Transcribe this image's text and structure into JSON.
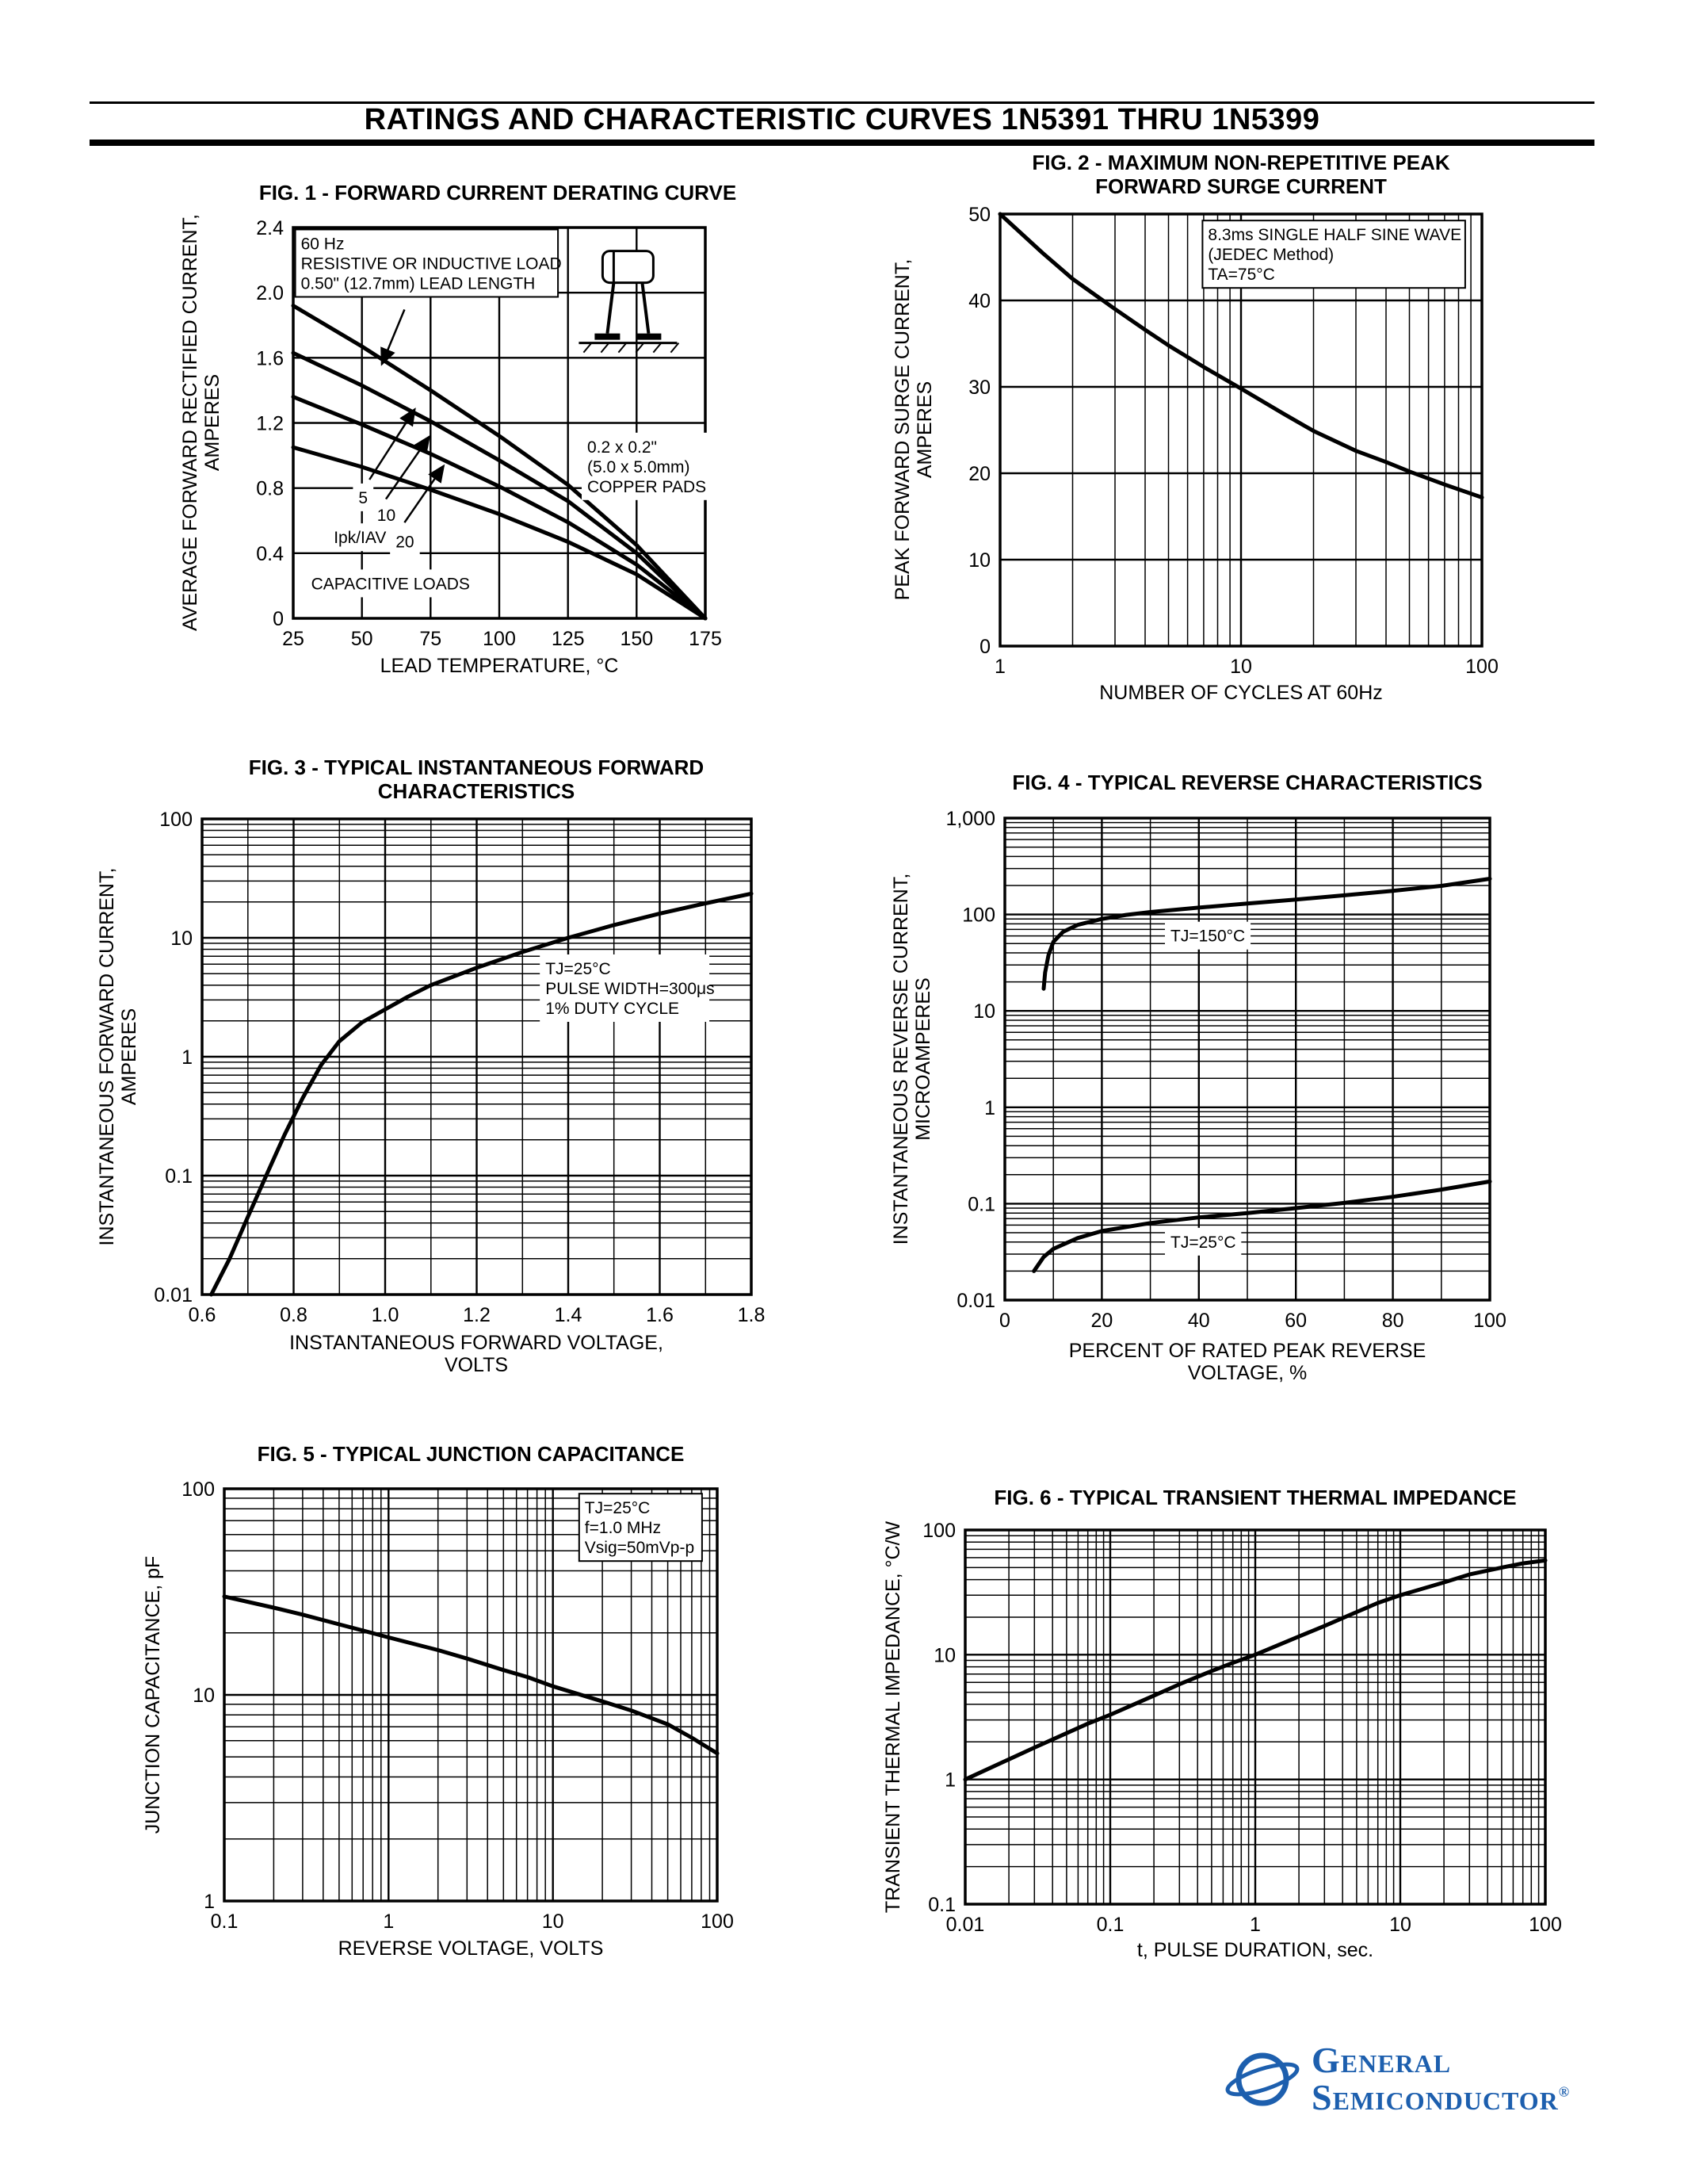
{
  "page": {
    "header_title": "RATINGS AND CHARACTERISTIC CURVES 1N5391 THRU 1N5399"
  },
  "logo": {
    "name_line1": "General",
    "name_line2": "Semiconductor",
    "registered_mark": "®",
    "brand_color": "#1d5fae"
  },
  "chart_data": [
    {
      "id": "fig1",
      "type": "line",
      "title": [
        "FIG. 1 - FORWARD CURRENT DERATING CURVE"
      ],
      "x": {
        "label": [
          "LEAD TEMPERATURE, °C"
        ],
        "scale": "linear",
        "min": 25,
        "max": 175,
        "ticks": [
          25,
          50,
          75,
          100,
          125,
          150,
          175
        ],
        "tick_labels": [
          "25",
          "50",
          "75",
          "100",
          "125",
          "150",
          "175"
        ],
        "minor_step": 0
      },
      "y": {
        "label": [
          "AVERAGE FORWARD RECTIFIED CURRENT,",
          "AMPERES"
        ],
        "scale": "linear",
        "min": 0,
        "max": 2.4,
        "ticks": [
          0,
          0.4,
          0.8,
          1.2,
          1.6,
          2.0,
          2.4
        ],
        "tick_labels": [
          "0",
          "0.4",
          "0.8",
          "1.2",
          "1.6",
          "2.0",
          "2.4"
        ],
        "minor_step": 0
      },
      "series": [
        {
          "name": "resistive-or-inductive-load",
          "points": [
            [
              25,
              1.92
            ],
            [
              50,
              1.67
            ],
            [
              75,
              1.4
            ],
            [
              100,
              1.12
            ],
            [
              125,
              0.82
            ],
            [
              150,
              0.45
            ],
            [
              175,
              0
            ]
          ]
        },
        {
          "name": "capacitive-load-ipk-iav-5",
          "points": [
            [
              25,
              1.63
            ],
            [
              50,
              1.43
            ],
            [
              75,
              1.21
            ],
            [
              100,
              0.97
            ],
            [
              125,
              0.72
            ],
            [
              150,
              0.4
            ],
            [
              175,
              0
            ]
          ]
        },
        {
          "name": "capacitive-load-ipk-iav-10",
          "points": [
            [
              25,
              1.36
            ],
            [
              50,
              1.19
            ],
            [
              75,
              1.01
            ],
            [
              100,
              0.81
            ],
            [
              125,
              0.59
            ],
            [
              150,
              0.33
            ],
            [
              175,
              0
            ]
          ]
        },
        {
          "name": "capacitive-load-ipk-iav-20",
          "points": [
            [
              25,
              1.05
            ],
            [
              50,
              0.93
            ],
            [
              75,
              0.79
            ],
            [
              100,
              0.64
            ],
            [
              125,
              0.47
            ],
            [
              150,
              0.27
            ],
            [
              175,
              0
            ]
          ]
        }
      ],
      "annotations": [
        {
          "lines": [
            "60 Hz",
            "RESISTIVE OR INDUCTIVE LOAD",
            "0.50\" (12.7mm) LEAD LENGTH"
          ],
          "fx": 0.005,
          "fy": 0.005,
          "boxed": true
        },
        {
          "lines": [
            "0.2 x 0.2\"",
            "(5.0 x 5.0mm)",
            "COPPER PADS"
          ],
          "fx": 0.7,
          "fy": 0.525,
          "boxed": false
        },
        {
          "lines": [
            "5"
          ],
          "fx": 0.145,
          "fy": 0.655,
          "boxed": false
        },
        {
          "lines": [
            "10"
          ],
          "fx": 0.19,
          "fy": 0.7,
          "boxed": false
        },
        {
          "lines": [
            "Ipk/IAV ="
          ],
          "fx": 0.085,
          "fy": 0.757,
          "boxed": false
        },
        {
          "lines": [
            "20"
          ],
          "fx": 0.235,
          "fy": 0.768,
          "boxed": false
        },
        {
          "lines": [
            "CAPACITIVE LOADS"
          ],
          "fx": 0.03,
          "fy": 0.875,
          "boxed": false
        }
      ],
      "arrows": [
        {
          "from": [
            0.27,
            0.21
          ],
          "to": [
            0.215,
            0.35
          ]
        },
        {
          "from": [
            0.185,
            0.645
          ],
          "to": [
            0.295,
            0.465
          ]
        },
        {
          "from": [
            0.225,
            0.695
          ],
          "to": [
            0.33,
            0.535
          ]
        },
        {
          "from": [
            0.27,
            0.755
          ],
          "to": [
            0.365,
            0.61
          ]
        }
      ]
    },
    {
      "id": "fig2",
      "type": "line",
      "title": [
        "FIG. 2 - MAXIMUM NON-REPETITIVE PEAK",
        "FORWARD SURGE CURRENT"
      ],
      "x": {
        "label": [
          "NUMBER OF CYCLES AT 60Hz"
        ],
        "scale": "log",
        "min": 1,
        "max": 100,
        "ticks": [
          1,
          10,
          100
        ],
        "tick_labels": [
          "1",
          "10",
          "100"
        ],
        "minor_step": 0
      },
      "y": {
        "label": [
          "PEAK FORWARD SURGE  CURRENT,",
          "AMPERES"
        ],
        "scale": "linear",
        "min": 0,
        "max": 50,
        "ticks": [
          0,
          10,
          20,
          30,
          40,
          50
        ],
        "tick_labels": [
          "0",
          "10",
          "20",
          "30",
          "40",
          "50"
        ],
        "minor_step": 0
      },
      "series": [
        {
          "name": "peak-forward-surge-current",
          "points": [
            [
              1,
              50
            ],
            [
              1.5,
              45.5
            ],
            [
              2,
              42.5
            ],
            [
              3,
              39
            ],
            [
              4,
              36.6
            ],
            [
              5,
              34.8
            ],
            [
              7,
              32.3
            ],
            [
              10,
              29.8
            ],
            [
              15,
              26.9
            ],
            [
              20,
              24.9
            ],
            [
              30,
              22.6
            ],
            [
              40,
              21.3
            ],
            [
              50,
              20.2
            ],
            [
              70,
              18.7
            ],
            [
              100,
              17.2
            ]
          ]
        }
      ],
      "annotations": [
        {
          "lines": [
            "8.3ms SINGLE HALF SINE WAVE",
            "(JEDEC Method)",
            "TA=75°C"
          ],
          "fx": 0.42,
          "fy": 0.015,
          "boxed": true
        }
      ],
      "arrows": []
    },
    {
      "id": "fig3",
      "type": "line",
      "title": [
        "FIG. 3 - TYPICAL INSTANTANEOUS FORWARD",
        "CHARACTERISTICS"
      ],
      "x": {
        "label": [
          "INSTANTANEOUS FORWARD VOLTAGE,",
          "VOLTS"
        ],
        "scale": "linear",
        "min": 0.6,
        "max": 1.8,
        "ticks": [
          0.6,
          0.8,
          1.0,
          1.2,
          1.4,
          1.6,
          1.8
        ],
        "tick_labels": [
          "0.6",
          "0.8",
          "1.0",
          "1.2",
          "1.4",
          "1.6",
          "1.8"
        ],
        "minor_step": 0.1
      },
      "y": {
        "label": [
          "INSTANTANEOUS FORWARD CURRENT,",
          "AMPERES"
        ],
        "scale": "log",
        "min": 0.01,
        "max": 100,
        "ticks": [
          0.01,
          0.1,
          1,
          10,
          100
        ],
        "tick_labels": [
          "0.01",
          "0.1",
          "1",
          "10",
          "100"
        ],
        "minor_step": 0
      },
      "series": [
        {
          "name": "instantaneous-forward-characteristic",
          "points": [
            [
              0.62,
              0.01
            ],
            [
              0.66,
              0.02
            ],
            [
              0.7,
              0.045
            ],
            [
              0.74,
              0.1
            ],
            [
              0.78,
              0.22
            ],
            [
              0.82,
              0.45
            ],
            [
              0.86,
              0.85
            ],
            [
              0.9,
              1.35
            ],
            [
              0.95,
              1.95
            ],
            [
              1.0,
              2.5
            ],
            [
              1.05,
              3.2
            ],
            [
              1.1,
              4.0
            ],
            [
              1.2,
              5.6
            ],
            [
              1.3,
              7.6
            ],
            [
              1.4,
              10.0
            ],
            [
              1.5,
              12.8
            ],
            [
              1.6,
              16.0
            ],
            [
              1.7,
              19.5
            ],
            [
              1.8,
              23.5
            ]
          ]
        }
      ],
      "annotations": [
        {
          "lines": [
            "TJ=25°C",
            "PULSE WIDTH=300μs",
            "1% DUTY CYCLE"
          ],
          "fx": 0.615,
          "fy": 0.285,
          "boxed": false
        }
      ],
      "arrows": []
    },
    {
      "id": "fig4",
      "type": "line",
      "title": [
        "FIG. 4 - TYPICAL REVERSE CHARACTERISTICS"
      ],
      "x": {
        "label": [
          "PERCENT OF RATED PEAK REVERSE",
          "VOLTAGE, %"
        ],
        "scale": "linear",
        "min": 0,
        "max": 100,
        "ticks": [
          0,
          20,
          40,
          60,
          80,
          100
        ],
        "tick_labels": [
          "0",
          "20",
          "40",
          "60",
          "80",
          "100"
        ],
        "minor_step": 10
      },
      "y": {
        "label": [
          "INSTANTANEOUS REVERSE  CURRENT,",
          "MICROAMPERES"
        ],
        "scale": "log",
        "min": 0.01,
        "max": 1000,
        "ticks": [
          0.01,
          0.1,
          1,
          10,
          100,
          1000
        ],
        "tick_labels": [
          "0.01",
          "0.1",
          "1",
          "10",
          "100",
          "1,000"
        ],
        "minor_step": 0
      },
      "series": [
        {
          "name": "reverse-current-tj-150c",
          "points": [
            [
              8,
              17
            ],
            [
              8.3,
              25
            ],
            [
              9,
              38
            ],
            [
              10,
              52
            ],
            [
              12,
              66
            ],
            [
              15,
              78
            ],
            [
              20,
              90
            ],
            [
              25,
              99
            ],
            [
              30,
              106
            ],
            [
              40,
              118
            ],
            [
              50,
              130
            ],
            [
              60,
              143
            ],
            [
              70,
              158
            ],
            [
              80,
              176
            ],
            [
              90,
              198
            ],
            [
              100,
              235
            ]
          ]
        },
        {
          "name": "reverse-current-tj-25c",
          "points": [
            [
              6,
              0.02
            ],
            [
              8,
              0.028
            ],
            [
              10,
              0.034
            ],
            [
              15,
              0.044
            ],
            [
              20,
              0.052
            ],
            [
              30,
              0.063
            ],
            [
              40,
              0.072
            ],
            [
              50,
              0.08
            ],
            [
              60,
              0.09
            ],
            [
              70,
              0.102
            ],
            [
              80,
              0.118
            ],
            [
              90,
              0.14
            ],
            [
              100,
              0.17
            ]
          ]
        }
      ],
      "annotations": [
        {
          "lines": [
            "TJ=150°C"
          ],
          "fx": 0.33,
          "fy": 0.215,
          "boxed": false
        },
        {
          "lines": [
            "TJ=25°C"
          ],
          "fx": 0.33,
          "fy": 0.85,
          "boxed": false
        }
      ],
      "arrows": []
    },
    {
      "id": "fig5",
      "type": "line",
      "title": [
        "FIG. 5 - TYPICAL JUNCTION CAPACITANCE"
      ],
      "x": {
        "label": [
          "REVERSE VOLTAGE, VOLTS"
        ],
        "scale": "log",
        "min": 0.1,
        "max": 100,
        "ticks": [
          0.1,
          1,
          10,
          100
        ],
        "tick_labels": [
          "0.1",
          "1",
          "10",
          "100"
        ],
        "minor_step": 0
      },
      "y": {
        "label": [
          "JUNCTION CAPACITANCE, pF"
        ],
        "scale": "log",
        "min": 1,
        "max": 100,
        "ticks": [
          1,
          10,
          100
        ],
        "tick_labels": [
          "1",
          "10",
          "100"
        ],
        "minor_step": 0
      },
      "series": [
        {
          "name": "junction-capacitance",
          "points": [
            [
              0.1,
              30
            ],
            [
              0.2,
              26.5
            ],
            [
              0.3,
              24.5
            ],
            [
              0.5,
              22
            ],
            [
              0.7,
              20.5
            ],
            [
              1,
              19
            ],
            [
              2,
              16.5
            ],
            [
              3,
              15
            ],
            [
              5,
              13.2
            ],
            [
              7,
              12.2
            ],
            [
              10,
              11
            ],
            [
              20,
              9.3
            ],
            [
              30,
              8.4
            ],
            [
              50,
              7.2
            ],
            [
              70,
              6.2
            ],
            [
              100,
              5.2
            ]
          ]
        }
      ],
      "annotations": [
        {
          "lines": [
            "TJ=25°C",
            "f=1.0 MHz",
            "Vsig=50mVp-p"
          ],
          "fx": 0.72,
          "fy": 0.012,
          "boxed": true
        }
      ],
      "arrows": []
    },
    {
      "id": "fig6",
      "type": "line",
      "title": [
        "FIG. 6 - TYPICAL TRANSIENT THERMAL IMPEDANCE"
      ],
      "x": {
        "label": [
          "t, PULSE DURATION, sec."
        ],
        "scale": "log",
        "min": 0.01,
        "max": 100,
        "ticks": [
          0.01,
          0.1,
          1,
          10,
          100
        ],
        "tick_labels": [
          "0.01",
          "0.1",
          "1",
          "10",
          "100"
        ],
        "minor_step": 0
      },
      "y": {
        "label": [
          "TRANSIENT THERMAL IMPEDANCE,  °C/W"
        ],
        "scale": "log",
        "min": 0.1,
        "max": 100,
        "ticks": [
          0.1,
          1,
          10,
          100
        ],
        "tick_labels": [
          "0.1",
          "1",
          "10",
          "100"
        ],
        "minor_step": 0
      },
      "series": [
        {
          "name": "transient-thermal-impedance",
          "points": [
            [
              0.01,
              1.0
            ],
            [
              0.02,
              1.45
            ],
            [
              0.03,
              1.8
            ],
            [
              0.05,
              2.35
            ],
            [
              0.07,
              2.8
            ],
            [
              0.1,
              3.3
            ],
            [
              0.2,
              4.7
            ],
            [
              0.3,
              5.8
            ],
            [
              0.5,
              7.4
            ],
            [
              0.7,
              8.6
            ],
            [
              1,
              10
            ],
            [
              2,
              14
            ],
            [
              3,
              17
            ],
            [
              5,
              22
            ],
            [
              7,
              26
            ],
            [
              10,
              30
            ],
            [
              20,
              38
            ],
            [
              30,
              44
            ],
            [
              50,
              50
            ],
            [
              70,
              54
            ],
            [
              100,
              57
            ]
          ]
        }
      ],
      "annotations": [],
      "arrows": []
    }
  ]
}
